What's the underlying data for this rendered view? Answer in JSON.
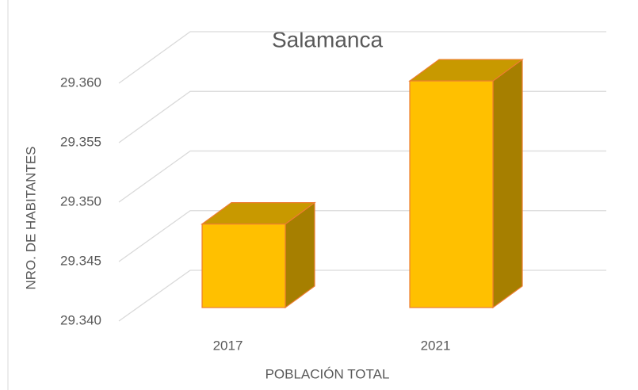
{
  "chart_data": {
    "type": "bar",
    "title": "Salamanca",
    "x_label": "POBLACIÓN TOTAL",
    "y_label": "NRO. DE HABITANTES",
    "categories": [
      "2017",
      "2021"
    ],
    "values": [
      29347,
      29359
    ],
    "color": "#ffc000",
    "ylim": [
      29340,
      29360
    ],
    "yticks": [
      {
        "value": 29340,
        "label": "29.340"
      },
      {
        "value": 29345,
        "label": "29.345"
      },
      {
        "value": 29350,
        "label": "29.350"
      },
      {
        "value": 29355,
        "label": "29.355"
      },
      {
        "value": 29360,
        "label": "29.360"
      }
    ],
    "grid": true
  }
}
